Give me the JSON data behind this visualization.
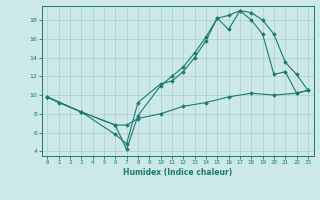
{
  "line1_x": [
    0,
    1,
    3,
    6,
    7,
    8,
    10,
    11,
    12,
    13,
    14,
    15,
    16,
    17,
    18,
    19,
    20,
    21,
    22,
    23
  ],
  "line1_y": [
    9.8,
    9.2,
    8.2,
    6.8,
    4.2,
    7.8,
    11.0,
    12.0,
    13.0,
    14.5,
    16.2,
    18.2,
    18.5,
    19.0,
    18.8,
    18.0,
    16.5,
    13.5,
    12.2,
    10.5
  ],
  "line2_x": [
    0,
    3,
    6,
    7,
    8,
    10,
    11,
    12,
    13,
    14,
    15,
    16,
    17,
    18,
    19,
    20,
    21,
    22,
    23
  ],
  "line2_y": [
    9.8,
    8.2,
    5.8,
    4.8,
    9.2,
    11.2,
    11.5,
    12.5,
    14.0,
    15.8,
    18.2,
    17.0,
    19.0,
    18.0,
    16.5,
    12.2,
    12.5,
    10.2,
    10.5
  ],
  "line3_x": [
    0,
    3,
    6,
    7,
    8,
    10,
    12,
    14,
    16,
    18,
    20,
    22,
    23
  ],
  "line3_y": [
    9.8,
    8.2,
    6.8,
    6.8,
    7.5,
    8.0,
    8.8,
    9.2,
    9.8,
    10.2,
    10.0,
    10.2,
    10.5
  ],
  "color": "#1a7a6e",
  "bg_color": "#cce8e8",
  "grid_color": "#aacfcf",
  "xlabel": "Humidex (Indice chaleur)",
  "xlim": [
    -0.5,
    23.5
  ],
  "ylim": [
    3.5,
    19.5
  ],
  "yticks": [
    4,
    6,
    8,
    10,
    12,
    14,
    16,
    18
  ],
  "xticks": [
    0,
    1,
    2,
    3,
    4,
    5,
    6,
    7,
    8,
    9,
    10,
    11,
    12,
    13,
    14,
    15,
    16,
    17,
    18,
    19,
    20,
    21,
    22,
    23
  ]
}
